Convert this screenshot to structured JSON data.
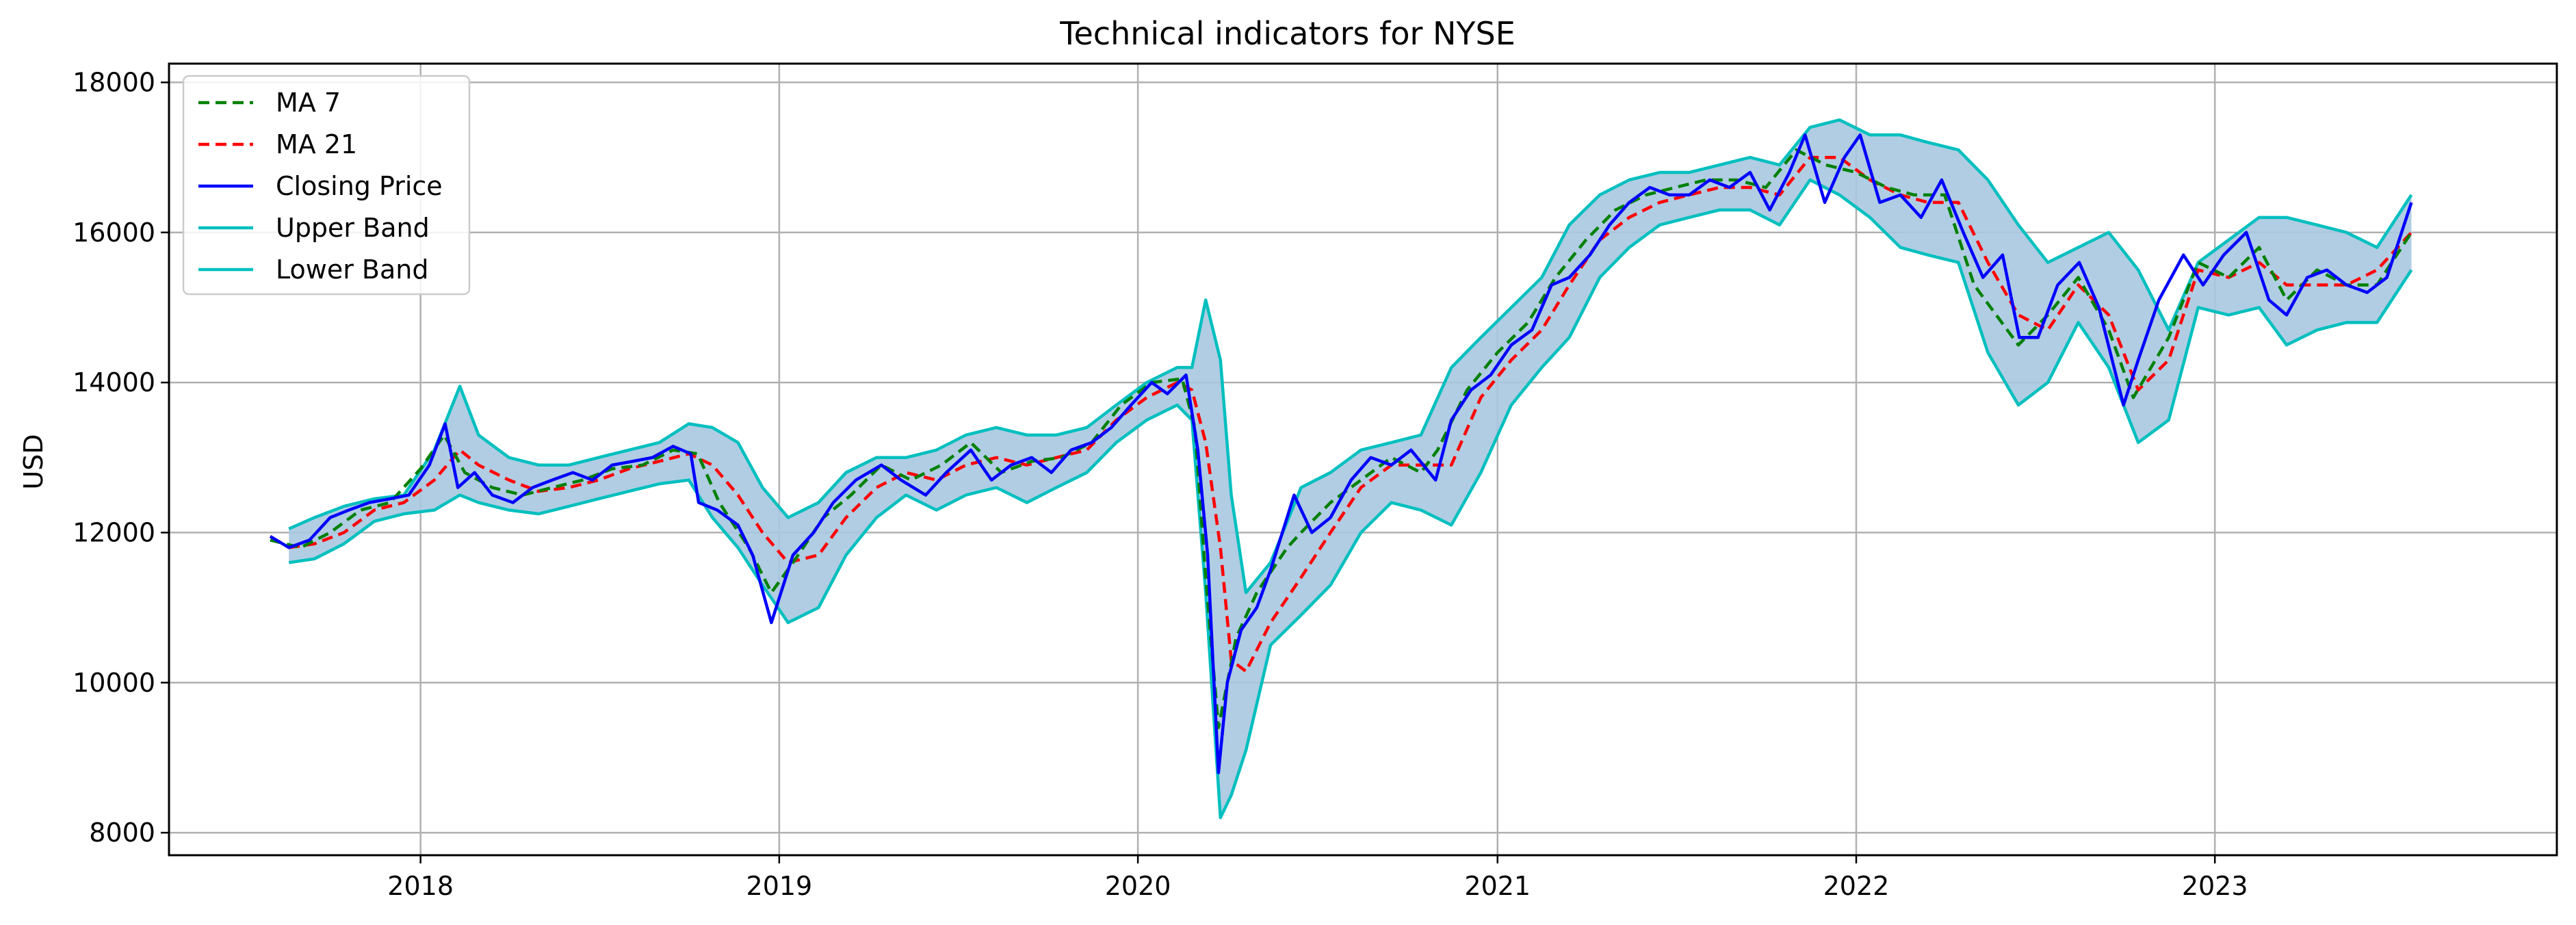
{
  "chart_data": {
    "type": "line",
    "title": "Technical indicators for NYSE",
    "xlabel": "",
    "ylabel": "USD",
    "x_type": "date",
    "xlim": [
      "2017-04-20",
      "2023-12-15"
    ],
    "ylim": [
      7700,
      18250
    ],
    "x_ticks": [
      "2018-01-01",
      "2019-01-01",
      "2020-01-01",
      "2021-01-01",
      "2022-01-01",
      "2023-01-01"
    ],
    "x_tick_labels": [
      "2018",
      "2019",
      "2020",
      "2021",
      "2022",
      "2023"
    ],
    "y_ticks": [
      8000,
      10000,
      12000,
      14000,
      16000,
      18000
    ],
    "y_tick_labels": [
      "8000",
      "10000",
      "12000",
      "14000",
      "16000",
      "18000"
    ],
    "grid": true,
    "legend_position": "top-left",
    "band_fill_color": "#a8c8e0",
    "series": [
      {
        "name": "MA 7",
        "color": "#008000",
        "style": "dashed",
        "x": [
          "2017-08-01",
          "2017-09-01",
          "2017-10-01",
          "2017-11-01",
          "2017-12-01",
          "2018-01-01",
          "2018-01-25",
          "2018-02-15",
          "2018-03-15",
          "2018-04-15",
          "2018-05-15",
          "2018-06-15",
          "2018-07-15",
          "2018-08-15",
          "2018-09-15",
          "2018-10-10",
          "2018-11-01",
          "2018-12-01",
          "2018-12-24",
          "2019-01-15",
          "2019-02-15",
          "2019-03-15",
          "2019-04-15",
          "2019-05-15",
          "2019-06-15",
          "2019-07-15",
          "2019-08-15",
          "2019-09-15",
          "2019-10-15",
          "2019-11-15",
          "2019-12-15",
          "2020-01-15",
          "2020-02-15",
          "2020-02-28",
          "2020-03-10",
          "2020-03-23",
          "2020-04-10",
          "2020-05-01",
          "2020-06-01",
          "2020-06-15",
          "2020-07-15",
          "2020-08-15",
          "2020-09-15",
          "2020-10-15",
          "2020-11-01",
          "2020-12-01",
          "2021-01-01",
          "2021-02-01",
          "2021-03-01",
          "2021-04-01",
          "2021-05-01",
          "2021-06-01",
          "2021-07-01",
          "2021-08-01",
          "2021-09-01",
          "2021-10-01",
          "2021-11-01",
          "2021-12-01",
          "2022-01-01",
          "2022-02-01",
          "2022-03-01",
          "2022-04-01",
          "2022-05-01",
          "2022-06-15",
          "2022-07-15",
          "2022-08-15",
          "2022-09-15",
          "2022-10-10",
          "2022-11-15",
          "2022-12-15",
          "2023-01-15",
          "2023-02-15",
          "2023-03-15",
          "2023-04-15",
          "2023-05-15",
          "2023-06-15",
          "2023-07-20"
        ],
        "y": [
          11900,
          11800,
          12000,
          12300,
          12400,
          12850,
          13300,
          12800,
          12600,
          12500,
          12600,
          12700,
          12850,
          12900,
          13100,
          13050,
          12400,
          11800,
          11200,
          11600,
          12200,
          12500,
          12900,
          12700,
          12900,
          13200,
          12800,
          12950,
          13000,
          13200,
          13700,
          14000,
          14050,
          13400,
          11400,
          9400,
          10600,
          11200,
          11800,
          12000,
          12400,
          12700,
          13000,
          12800,
          13100,
          13900,
          14400,
          14800,
          15400,
          15900,
          16300,
          16500,
          16600,
          16700,
          16700,
          16600,
          17100,
          16900,
          16800,
          16600,
          16500,
          16500,
          15300,
          14500,
          14900,
          15400,
          14700,
          13800,
          14600,
          15600,
          15400,
          15800,
          15100,
          15500,
          15300,
          15300,
          16000
        ]
      },
      {
        "name": "MA 21",
        "color": "#ff0000",
        "style": "dashed",
        "x": [
          "2017-08-20",
          "2017-09-15",
          "2017-10-15",
          "2017-11-15",
          "2017-12-15",
          "2018-01-15",
          "2018-02-10",
          "2018-03-01",
          "2018-04-01",
          "2018-05-01",
          "2018-06-01",
          "2018-07-01",
          "2018-08-01",
          "2018-09-01",
          "2018-10-01",
          "2018-10-25",
          "2018-11-20",
          "2018-12-15",
          "2019-01-10",
          "2019-02-10",
          "2019-03-10",
          "2019-04-10",
          "2019-05-10",
          "2019-06-10",
          "2019-07-10",
          "2019-08-10",
          "2019-09-10",
          "2019-10-10",
          "2019-11-10",
          "2019-12-10",
          "2020-01-10",
          "2020-02-10",
          "2020-02-25",
          "2020-03-10",
          "2020-03-25",
          "2020-04-05",
          "2020-04-20",
          "2020-05-15",
          "2020-06-15",
          "2020-07-15",
          "2020-08-15",
          "2020-09-15",
          "2020-10-15",
          "2020-11-15",
          "2020-12-15",
          "2021-01-15",
          "2021-02-15",
          "2021-03-15",
          "2021-04-15",
          "2021-05-15",
          "2021-06-15",
          "2021-07-15",
          "2021-08-15",
          "2021-09-15",
          "2021-10-15",
          "2021-11-15",
          "2021-12-15",
          "2022-01-15",
          "2022-02-15",
          "2022-03-15",
          "2022-04-15",
          "2022-05-15",
          "2022-06-15",
          "2022-07-15",
          "2022-08-15",
          "2022-09-15",
          "2022-10-15",
          "2022-11-15",
          "2022-12-15",
          "2023-01-15",
          "2023-02-15",
          "2023-03-15",
          "2023-04-15",
          "2023-05-15",
          "2023-06-15",
          "2023-07-20"
        ],
        "y": [
          11800,
          11850,
          12000,
          12300,
          12400,
          12700,
          13100,
          12900,
          12700,
          12550,
          12600,
          12700,
          12850,
          12950,
          13050,
          12900,
          12500,
          12000,
          11600,
          11700,
          12200,
          12600,
          12800,
          12700,
          12900,
          13000,
          12900,
          13000,
          13100,
          13500,
          13800,
          14000,
          13900,
          13200,
          11800,
          10300,
          10150,
          10800,
          11400,
          12000,
          12600,
          12900,
          12900,
          12900,
          13800,
          14300,
          14700,
          15300,
          15900,
          16200,
          16400,
          16500,
          16600,
          16600,
          16500,
          17000,
          17000,
          16700,
          16500,
          16400,
          16400,
          15600,
          14900,
          14700,
          15300,
          14900,
          13900,
          14300,
          15500,
          15400,
          15600,
          15300,
          15300,
          15300,
          15500,
          16000
        ]
      },
      {
        "name": "Closing Price",
        "color": "#0000ff",
        "style": "solid",
        "x": [
          "2017-08-01",
          "2017-08-20",
          "2017-09-10",
          "2017-10-01",
          "2017-10-20",
          "2017-11-10",
          "2017-12-01",
          "2017-12-20",
          "2018-01-10",
          "2018-01-26",
          "2018-02-08",
          "2018-02-25",
          "2018-03-15",
          "2018-04-05",
          "2018-04-25",
          "2018-05-15",
          "2018-06-05",
          "2018-06-25",
          "2018-07-15",
          "2018-08-05",
          "2018-08-25",
          "2018-09-15",
          "2018-10-03",
          "2018-10-11",
          "2018-10-30",
          "2018-11-20",
          "2018-12-05",
          "2018-12-24",
          "2019-01-15",
          "2019-02-05",
          "2019-02-25",
          "2019-03-20",
          "2019-04-15",
          "2019-05-05",
          "2019-05-30",
          "2019-06-20",
          "2019-07-15",
          "2019-08-05",
          "2019-08-25",
          "2019-09-15",
          "2019-10-05",
          "2019-10-25",
          "2019-11-15",
          "2019-12-05",
          "2019-12-25",
          "2020-01-15",
          "2020-01-31",
          "2020-02-19",
          "2020-03-02",
          "2020-03-12",
          "2020-03-23",
          "2020-04-01",
          "2020-04-15",
          "2020-05-01",
          "2020-05-15",
          "2020-06-08",
          "2020-06-26",
          "2020-07-15",
          "2020-08-05",
          "2020-08-25",
          "2020-09-15",
          "2020-10-05",
          "2020-10-30",
          "2020-11-15",
          "2020-12-05",
          "2020-12-25",
          "2021-01-15",
          "2021-02-05",
          "2021-02-25",
          "2021-03-15",
          "2021-04-05",
          "2021-04-25",
          "2021-05-15",
          "2021-06-05",
          "2021-06-25",
          "2021-07-15",
          "2021-08-05",
          "2021-08-25",
          "2021-09-15",
          "2021-10-05",
          "2021-10-25",
          "2021-11-10",
          "2021-11-30",
          "2021-12-20",
          "2022-01-05",
          "2022-01-25",
          "2022-02-15",
          "2022-03-08",
          "2022-03-29",
          "2022-04-20",
          "2022-05-10",
          "2022-05-30",
          "2022-06-16",
          "2022-07-05",
          "2022-07-25",
          "2022-08-16",
          "2022-09-05",
          "2022-09-30",
          "2022-10-15",
          "2022-11-05",
          "2022-11-30",
          "2022-12-20",
          "2023-01-10",
          "2023-02-02",
          "2023-02-25",
          "2023-03-15",
          "2023-04-05",
          "2023-04-25",
          "2023-05-15",
          "2023-06-05",
          "2023-06-25",
          "2023-07-20"
        ],
        "y": [
          11950,
          11800,
          11900,
          12200,
          12300,
          12400,
          12450,
          12500,
          12900,
          13450,
          12600,
          12800,
          12500,
          12400,
          12600,
          12700,
          12800,
          12700,
          12900,
          12950,
          13000,
          13150,
          13050,
          12400,
          12300,
          12100,
          11700,
          10800,
          11700,
          12000,
          12400,
          12700,
          12900,
          12700,
          12500,
          12800,
          13100,
          12700,
          12900,
          13000,
          12800,
          13100,
          13200,
          13400,
          13700,
          14000,
          13850,
          14100,
          13100,
          11700,
          8800,
          10000,
          10700,
          11000,
          11500,
          12500,
          12000,
          12200,
          12700,
          13000,
          12900,
          13100,
          12700,
          13500,
          13900,
          14100,
          14500,
          14700,
          15300,
          15400,
          15700,
          16100,
          16400,
          16600,
          16500,
          16500,
          16700,
          16600,
          16800,
          16300,
          16800,
          17300,
          16400,
          17000,
          17300,
          16400,
          16500,
          16200,
          16700,
          16000,
          15400,
          15700,
          14600,
          14600,
          15300,
          15600,
          15000,
          13700,
          14300,
          15100,
          15700,
          15300,
          15700,
          16000,
          15100,
          14900,
          15400,
          15500,
          15300,
          15200,
          15400,
          16400
        ]
      },
      {
        "name": "Upper Band",
        "color": "#00bfbf",
        "style": "solid",
        "x": [
          "2017-08-20",
          "2017-09-15",
          "2017-10-15",
          "2017-11-15",
          "2017-12-15",
          "2018-01-15",
          "2018-02-10",
          "2018-03-01",
          "2018-04-01",
          "2018-05-01",
          "2018-06-01",
          "2018-07-01",
          "2018-08-01",
          "2018-09-01",
          "2018-10-01",
          "2018-10-25",
          "2018-11-20",
          "2018-12-15",
          "2019-01-10",
          "2019-02-10",
          "2019-03-10",
          "2019-04-10",
          "2019-05-10",
          "2019-06-10",
          "2019-07-10",
          "2019-08-10",
          "2019-09-10",
          "2019-10-10",
          "2019-11-10",
          "2019-12-10",
          "2020-01-10",
          "2020-02-10",
          "2020-02-25",
          "2020-03-10",
          "2020-03-25",
          "2020-04-05",
          "2020-04-20",
          "2020-05-15",
          "2020-06-15",
          "2020-07-15",
          "2020-08-15",
          "2020-09-15",
          "2020-10-15",
          "2020-11-15",
          "2020-12-15",
          "2021-01-15",
          "2021-02-15",
          "2021-03-15",
          "2021-04-15",
          "2021-05-15",
          "2021-06-15",
          "2021-07-15",
          "2021-08-15",
          "2021-09-15",
          "2021-10-15",
          "2021-11-15",
          "2021-12-15",
          "2022-01-15",
          "2022-02-15",
          "2022-03-15",
          "2022-04-15",
          "2022-05-15",
          "2022-06-15",
          "2022-07-15",
          "2022-08-15",
          "2022-09-15",
          "2022-10-15",
          "2022-11-15",
          "2022-12-15",
          "2023-01-15",
          "2023-02-15",
          "2023-03-15",
          "2023-04-15",
          "2023-05-15",
          "2023-06-15",
          "2023-07-20"
        ],
        "y": [
          12050,
          12200,
          12350,
          12450,
          12500,
          13100,
          13950,
          13300,
          13000,
          12900,
          12900,
          13000,
          13100,
          13200,
          13450,
          13400,
          13200,
          12600,
          12200,
          12400,
          12800,
          13000,
          13000,
          13100,
          13300,
          13400,
          13300,
          13300,
          13400,
          13700,
          14000,
          14200,
          14200,
          15100,
          14300,
          12500,
          11200,
          11600,
          12600,
          12800,
          13100,
          13200,
          13300,
          14200,
          14600,
          15000,
          15400,
          16100,
          16500,
          16700,
          16800,
          16800,
          16900,
          17000,
          16900,
          17400,
          17500,
          17300,
          17300,
          17200,
          17100,
          16700,
          16100,
          15600,
          15800,
          16000,
          15500,
          14700,
          15600,
          15900,
          16200,
          16200,
          16100,
          16000,
          15800,
          16500
        ]
      },
      {
        "name": "Lower Band",
        "color": "#00bfbf",
        "style": "solid",
        "x": [
          "2017-08-20",
          "2017-09-15",
          "2017-10-15",
          "2017-11-15",
          "2017-12-15",
          "2018-01-15",
          "2018-02-10",
          "2018-03-01",
          "2018-04-01",
          "2018-05-01",
          "2018-06-01",
          "2018-07-01",
          "2018-08-01",
          "2018-09-01",
          "2018-10-01",
          "2018-10-25",
          "2018-11-20",
          "2018-12-15",
          "2019-01-10",
          "2019-02-10",
          "2019-03-10",
          "2019-04-10",
          "2019-05-10",
          "2019-06-10",
          "2019-07-10",
          "2019-08-10",
          "2019-09-10",
          "2019-10-10",
          "2019-11-10",
          "2019-12-10",
          "2020-01-10",
          "2020-02-10",
          "2020-02-25",
          "2020-03-10",
          "2020-03-25",
          "2020-04-05",
          "2020-04-20",
          "2020-05-15",
          "2020-06-15",
          "2020-07-15",
          "2020-08-15",
          "2020-09-15",
          "2020-10-15",
          "2020-11-15",
          "2020-12-15",
          "2021-01-15",
          "2021-02-15",
          "2021-03-15",
          "2021-04-15",
          "2021-05-15",
          "2021-06-15",
          "2021-07-15",
          "2021-08-15",
          "2021-09-15",
          "2021-10-15",
          "2021-11-15",
          "2021-12-15",
          "2022-01-15",
          "2022-02-15",
          "2022-03-15",
          "2022-04-15",
          "2022-05-15",
          "2022-06-15",
          "2022-07-15",
          "2022-08-15",
          "2022-09-15",
          "2022-10-15",
          "2022-11-15",
          "2022-12-15",
          "2023-01-15",
          "2023-02-15",
          "2023-03-15",
          "2023-04-15",
          "2023-05-15",
          "2023-06-15",
          "2023-07-20"
        ],
        "y": [
          11600,
          11650,
          11850,
          12150,
          12250,
          12300,
          12500,
          12400,
          12300,
          12250,
          12350,
          12450,
          12550,
          12650,
          12700,
          12200,
          11800,
          11300,
          10800,
          11000,
          11700,
          12200,
          12500,
          12300,
          12500,
          12600,
          12400,
          12600,
          12800,
          13200,
          13500,
          13700,
          13500,
          11200,
          8200,
          8500,
          9100,
          10500,
          10900,
          11300,
          12000,
          12400,
          12300,
          12100,
          12800,
          13700,
          14200,
          14600,
          15400,
          15800,
          16100,
          16200,
          16300,
          16300,
          16100,
          16700,
          16500,
          16200,
          15800,
          15700,
          15600,
          14400,
          13700,
          14000,
          14800,
          14200,
          13200,
          13500,
          15000,
          14900,
          15000,
          14500,
          14700,
          14800,
          14800,
          15500
        ]
      }
    ]
  }
}
